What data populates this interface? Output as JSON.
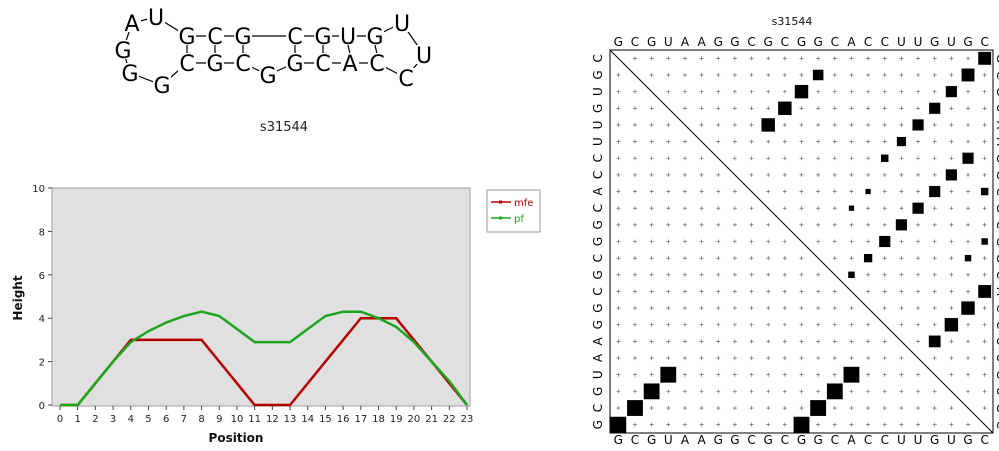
{
  "sequence": "GCGUAAGGCGCGGCACCUUGUGC",
  "structure": {
    "top_row": [
      "A",
      "U",
      "G",
      "C",
      "G",
      "C",
      "G",
      "U",
      "G",
      "U"
    ],
    "bottom_row": [
      "A",
      "G",
      "G",
      "C",
      "G",
      "C",
      "G",
      "C",
      "A",
      "C",
      "C",
      "U"
    ]
  },
  "mountain_plot": {
    "title": "s31544",
    "xlabel": "Position",
    "ylabel": "Height",
    "chart_data": {
      "type": "line",
      "x": [
        0,
        1,
        2,
        3,
        4,
        5,
        6,
        7,
        8,
        9,
        10,
        11,
        12,
        13,
        14,
        15,
        16,
        17,
        18,
        19,
        20,
        21,
        22,
        23
      ],
      "ylim": [
        0,
        10
      ],
      "yticks": [
        0,
        2,
        4,
        6,
        8,
        10
      ],
      "grid": false,
      "legend_position": "top-right",
      "series": [
        {
          "name": "mfe",
          "color": "#b30000",
          "values": [
            0,
            0,
            1,
            2,
            3,
            3,
            3,
            3,
            3,
            2,
            1,
            0,
            0,
            0,
            1,
            2,
            3,
            4,
            4,
            4,
            3,
            2,
            1,
            0
          ]
        },
        {
          "name": "pf",
          "color": "#1ea51e",
          "values": [
            0,
            0,
            1,
            2,
            2.9,
            3.4,
            3.8,
            4.1,
            4.3,
            4.1,
            3.5,
            2.9,
            2.9,
            2.9,
            3.5,
            4.1,
            4.3,
            4.3,
            4,
            3.6,
            2.9,
            2,
            1.1,
            0
          ]
        }
      ]
    }
  },
  "dot_plot": {
    "title": "s31544",
    "chart_data": {
      "type": "heatmap",
      "n": 23,
      "upper_pairs": [
        {
          "i": 2,
          "j": 13,
          "p": 0.4
        },
        {
          "i": 3,
          "j": 12,
          "p": 0.65
        },
        {
          "i": 4,
          "j": 11,
          "p": 0.65
        },
        {
          "i": 5,
          "j": 10,
          "p": 0.65
        },
        {
          "i": 7,
          "j": 22,
          "p": 0.45
        },
        {
          "i": 8,
          "j": 21,
          "p": 0.45
        },
        {
          "i": 9,
          "j": 20,
          "p": 0.45
        },
        {
          "i": 10,
          "j": 19,
          "p": 0.45
        },
        {
          "i": 11,
          "j": 18,
          "p": 0.45
        },
        {
          "i": 12,
          "j": 17,
          "p": 0.45
        },
        {
          "i": 13,
          "j": 16,
          "p": 0.25
        },
        {
          "i": 14,
          "j": 15,
          "p": 0.15
        },
        {
          "i": 9,
          "j": 23,
          "p": 0.2
        },
        {
          "i": 12,
          "j": 23,
          "p": 0.15
        },
        {
          "i": 13,
          "j": 22,
          "p": 0.15
        },
        {
          "i": 1,
          "j": 23,
          "p": 0.6
        },
        {
          "i": 2,
          "j": 22,
          "p": 0.6
        },
        {
          "i": 3,
          "j": 21,
          "p": 0.45
        },
        {
          "i": 4,
          "j": 20,
          "p": 0.45
        },
        {
          "i": 5,
          "j": 19,
          "p": 0.45
        },
        {
          "i": 6,
          "j": 18,
          "p": 0.3
        },
        {
          "i": 7,
          "j": 17,
          "p": 0.2
        },
        {
          "i": 9,
          "j": 16,
          "p": 0.1
        },
        {
          "i": 10,
          "j": 15,
          "p": 0.1
        },
        {
          "i": 15,
          "j": 23,
          "p": 0.6
        },
        {
          "i": 16,
          "j": 22,
          "p": 0.65
        },
        {
          "i": 17,
          "j": 21,
          "p": 0.65
        },
        {
          "i": 18,
          "j": 20,
          "p": 0.5
        }
      ],
      "lower_pairs": [
        {
          "i": 1,
          "j": 23
        },
        {
          "i": 2,
          "j": 22
        },
        {
          "i": 3,
          "j": 21
        },
        {
          "i": 4,
          "j": 20
        },
        {
          "i": 12,
          "j": 23
        },
        {
          "i": 13,
          "j": 22
        },
        {
          "i": 14,
          "j": 21
        },
        {
          "i": 15,
          "j": 20
        }
      ]
    }
  }
}
